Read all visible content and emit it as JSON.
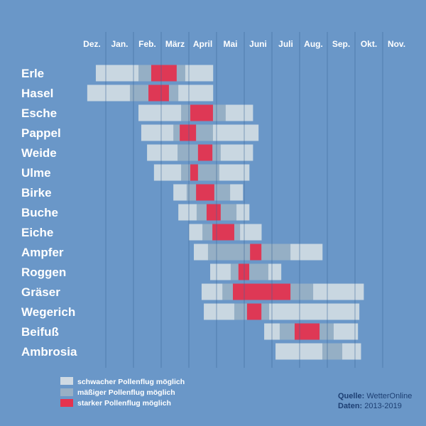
{
  "chart_data": {
    "type": "gantt",
    "title": "",
    "months": [
      "Dez.",
      "Jan.",
      "Feb.",
      "März",
      "April",
      "Mai",
      "Juni",
      "Juli",
      "Aug.",
      "Sep.",
      "Okt.",
      "Nov."
    ],
    "x_unit": "months since 1 Dec",
    "xlim": [
      0,
      12
    ],
    "grid": true,
    "levels": {
      "light": {
        "label": "schwacher Pollenflug möglich",
        "color": "#cfdae3"
      },
      "moderate": {
        "label": "mäßiger Pollenflug möglich",
        "color": "#98b0c5"
      },
      "strong": {
        "label": "starker Pollenflug möglich",
        "color": "#e5334f"
      }
    },
    "series": [
      {
        "name": "Erle",
        "segments": [
          [
            0.64,
            2.18,
            "light"
          ],
          [
            2.18,
            2.64,
            "moderate"
          ],
          [
            2.64,
            3.56,
            "strong"
          ],
          [
            3.56,
            3.87,
            "moderate"
          ],
          [
            3.87,
            4.87,
            "light"
          ]
        ]
      },
      {
        "name": "Hasel",
        "segments": [
          [
            0.33,
            1.87,
            "light"
          ],
          [
            1.87,
            2.54,
            "moderate"
          ],
          [
            2.54,
            3.28,
            "strong"
          ],
          [
            3.28,
            3.62,
            "moderate"
          ],
          [
            3.62,
            4.87,
            "light"
          ]
        ]
      },
      {
        "name": "Esche",
        "segments": [
          [
            2.18,
            3.72,
            "light"
          ],
          [
            3.72,
            4.05,
            "moderate"
          ],
          [
            4.05,
            4.87,
            "strong"
          ],
          [
            4.87,
            5.33,
            "moderate"
          ],
          [
            5.33,
            6.31,
            "light"
          ]
        ]
      },
      {
        "name": "Pappel",
        "segments": [
          [
            2.28,
            3.44,
            "light"
          ],
          [
            3.44,
            3.67,
            "moderate"
          ],
          [
            3.67,
            4.26,
            "strong"
          ],
          [
            4.26,
            4.87,
            "moderate"
          ],
          [
            4.87,
            6.51,
            "light"
          ]
        ]
      },
      {
        "name": "Weide",
        "segments": [
          [
            2.49,
            3.59,
            "light"
          ],
          [
            3.59,
            4.33,
            "moderate"
          ],
          [
            4.33,
            4.85,
            "strong"
          ],
          [
            4.85,
            5.15,
            "moderate"
          ],
          [
            5.15,
            6.31,
            "light"
          ]
        ]
      },
      {
        "name": "Ulme",
        "segments": [
          [
            2.74,
            3.72,
            "light"
          ],
          [
            3.72,
            4.05,
            "moderate"
          ],
          [
            4.05,
            4.33,
            "strong"
          ],
          [
            4.33,
            5.1,
            "moderate"
          ],
          [
            5.1,
            6.18,
            "light"
          ]
        ]
      },
      {
        "name": "Birke",
        "segments": [
          [
            3.44,
            3.92,
            "light"
          ],
          [
            3.92,
            4.26,
            "moderate"
          ],
          [
            4.26,
            4.92,
            "strong"
          ],
          [
            4.92,
            5.49,
            "moderate"
          ],
          [
            5.49,
            5.95,
            "light"
          ]
        ]
      },
      {
        "name": "Buche",
        "segments": [
          [
            3.62,
            4.28,
            "light"
          ],
          [
            4.28,
            4.64,
            "moderate"
          ],
          [
            4.64,
            5.15,
            "strong"
          ],
          [
            5.15,
            5.72,
            "moderate"
          ],
          [
            5.72,
            6.18,
            "light"
          ]
        ]
      },
      {
        "name": "Eiche",
        "segments": [
          [
            4.0,
            4.49,
            "light"
          ],
          [
            4.49,
            4.85,
            "moderate"
          ],
          [
            4.85,
            5.64,
            "strong"
          ],
          [
            5.64,
            5.85,
            "moderate"
          ],
          [
            5.85,
            6.62,
            "light"
          ]
        ]
      },
      {
        "name": "Ampfer",
        "segments": [
          [
            4.18,
            4.69,
            "light"
          ],
          [
            4.69,
            6.21,
            "moderate"
          ],
          [
            6.21,
            6.62,
            "strong"
          ],
          [
            6.62,
            7.67,
            "moderate"
          ],
          [
            7.67,
            8.82,
            "light"
          ]
        ]
      },
      {
        "name": "Roggen",
        "segments": [
          [
            4.77,
            5.51,
            "light"
          ],
          [
            5.51,
            5.79,
            "moderate"
          ],
          [
            5.79,
            6.18,
            "strong"
          ],
          [
            6.18,
            6.87,
            "moderate"
          ],
          [
            6.87,
            7.33,
            "light"
          ]
        ]
      },
      {
        "name": "Gräser",
        "segments": [
          [
            4.46,
            5.21,
            "light"
          ],
          [
            5.21,
            5.59,
            "moderate"
          ],
          [
            5.59,
            7.67,
            "strong"
          ],
          [
            7.67,
            8.49,
            "moderate"
          ],
          [
            8.49,
            10.31,
            "light"
          ]
        ]
      },
      {
        "name": "Wegerich",
        "segments": [
          [
            4.54,
            5.64,
            "light"
          ],
          [
            5.64,
            6.1,
            "moderate"
          ],
          [
            6.1,
            6.62,
            "strong"
          ],
          [
            6.62,
            6.9,
            "moderate"
          ],
          [
            6.9,
            10.15,
            "light"
          ]
        ]
      },
      {
        "name": "Beifuß",
        "segments": [
          [
            6.72,
            7.28,
            "light"
          ],
          [
            7.28,
            7.82,
            "moderate"
          ],
          [
            7.82,
            8.72,
            "strong"
          ],
          [
            8.72,
            9.23,
            "moderate"
          ],
          [
            9.23,
            10.1,
            "light"
          ]
        ]
      },
      {
        "name": "Ambrosia",
        "segments": [
          [
            7.13,
            8.82,
            "light"
          ],
          [
            8.82,
            9.54,
            "moderate"
          ],
          [
            9.54,
            10.21,
            "light"
          ]
        ]
      }
    ]
  },
  "source": {
    "label": "Quelle:",
    "value": "WetterOnline"
  },
  "data_period": {
    "label": "Daten:",
    "value": "2013-2019"
  },
  "colors": {
    "background": "#6a97c8",
    "grid": "#3b6699"
  }
}
